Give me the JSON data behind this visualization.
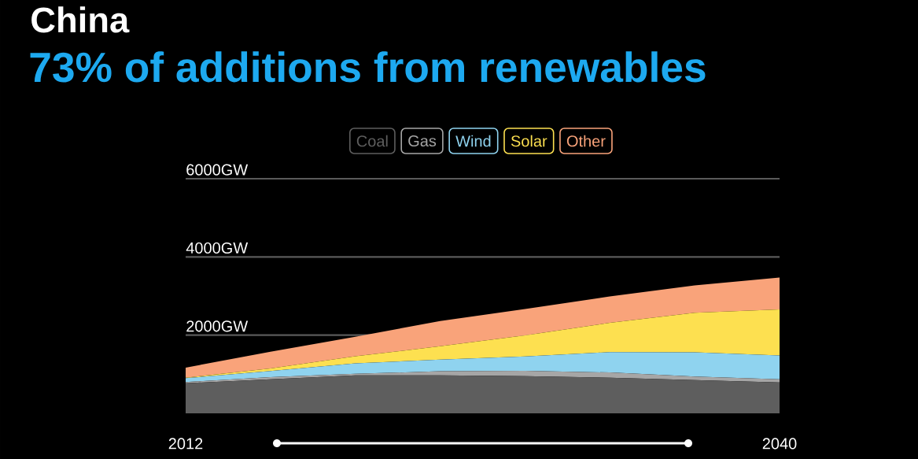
{
  "chart_data": {
    "type": "area",
    "title": "China",
    "subtitle": "73% of additions from renewables",
    "x": [
      2012,
      2016,
      2020,
      2024,
      2028,
      2032,
      2036,
      2040
    ],
    "series": [
      {
        "name": "Coal",
        "color": "#5e5e5e",
        "values": [
          770,
          870,
          970,
          970,
          950,
          910,
          850,
          790
        ]
      },
      {
        "name": "Gas",
        "color": "#a6a6a6",
        "values": [
          30,
          55,
          40,
          105,
          135,
          135,
          90,
          80
        ]
      },
      {
        "name": "Wind",
        "color": "#8fd3ef",
        "values": [
          100,
          155,
          270,
          300,
          370,
          520,
          620,
          610
        ]
      },
      {
        "name": "Solar",
        "color": "#fde050",
        "values": [
          10,
          70,
          180,
          340,
          540,
          750,
          1010,
          1180
        ]
      },
      {
        "name": "Other",
        "color": "#f9a37a",
        "values": [
          260,
          425,
          500,
          645,
          675,
          675,
          700,
          815
        ]
      }
    ],
    "stacked": true,
    "xlim": [
      2012,
      2040
    ],
    "xticks": [
      2012,
      2040
    ],
    "ylim": [
      0,
      6000
    ],
    "yticks": [
      {
        "value": 2000,
        "label": "2000GW"
      },
      {
        "value": 4000,
        "label": "4000GW"
      },
      {
        "value": 6000,
        "label": "6000GW"
      }
    ],
    "grid": "y",
    "legend": "top"
  }
}
